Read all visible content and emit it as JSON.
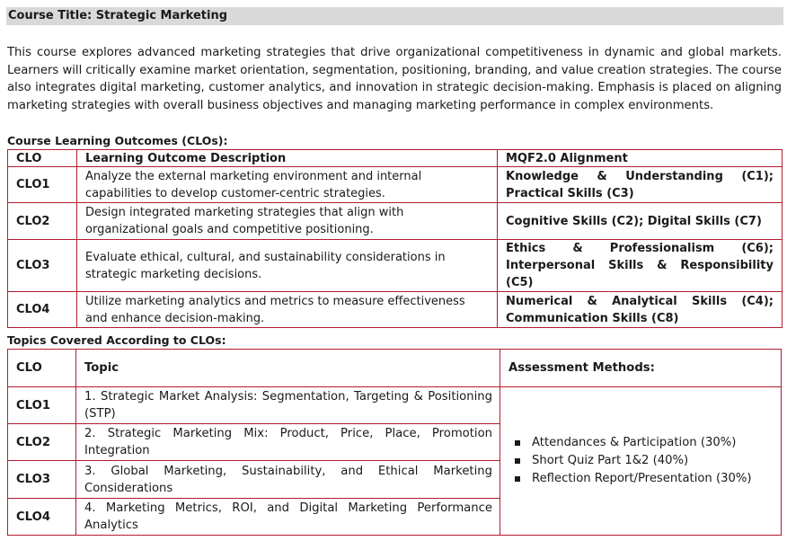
{
  "course_title": "Course Title: Strategic Marketing",
  "description": "This course explores advanced marketing strategies that drive organizational competitiveness in dynamic and global markets. Learners will critically examine market orientation, segmentation, positioning, branding, and value creation strategies. The course also integrates digital marketing, customer analytics, and innovation in strategic decision-making. Emphasis is placed on aligning marketing strategies with overall business objectives and managing marketing performance in complex environments.",
  "clo_section": {
    "heading": "Course Learning Outcomes (CLOs):",
    "headers": [
      "CLO",
      "Learning Outcome Description",
      "MQF2.0 Alignment"
    ],
    "rows": [
      {
        "clo": "CLO1",
        "description": "Analyze the external marketing environment and internal capabilities to develop customer-centric strategies.",
        "alignment": "Knowledge & Understanding (C1); Practical Skills (C3)"
      },
      {
        "clo": "CLO2",
        "description": "Design integrated marketing strategies that align with organizational goals and competitive positioning.",
        "alignment": "Cognitive Skills (C2); Digital Skills (C7)"
      },
      {
        "clo": "CLO3",
        "description": "Evaluate ethical, cultural, and sustainability considerations in strategic marketing decisions.",
        "alignment": "Ethics & Professionalism (C6); Interpersonal Skills & Responsibility (C5)"
      },
      {
        "clo": "CLO4",
        "description": "Utilize marketing analytics and metrics to measure effectiveness and enhance decision-making.",
        "alignment": "Numerical & Analytical Skills (C4); Communication Skills (C8)"
      }
    ]
  },
  "topics_section": {
    "heading": "Topics Covered According to CLOs:",
    "headers": [
      "CLO",
      "Topic",
      "Assessment Methods:"
    ],
    "rows": [
      {
        "clo": "CLO1",
        "topic": "1. Strategic Market Analysis: Segmentation, Targeting & Positioning (STP)"
      },
      {
        "clo": "CLO2",
        "topic": "2. Strategic Marketing Mix: Product, Price, Place, Promotion Integration"
      },
      {
        "clo": "CLO3",
        "topic": "3. Global Marketing, Sustainability, and Ethical Marketing Considerations"
      },
      {
        "clo": "CLO4",
        "topic": "4. Marketing Metrics, ROI, and Digital Marketing Performance Analytics"
      }
    ],
    "assessments": [
      "Attendances & Participation (30%)",
      "Short Quiz Part 1&2 (40%)",
      "Reflection Report/Presentation (30%)"
    ]
  },
  "colors": {
    "border": "#b01c2e",
    "title_bar": "#d9d9d9",
    "text": "#1a1a1a"
  },
  "icons": {
    "assessment_bullet": "square-bullet-icon"
  }
}
